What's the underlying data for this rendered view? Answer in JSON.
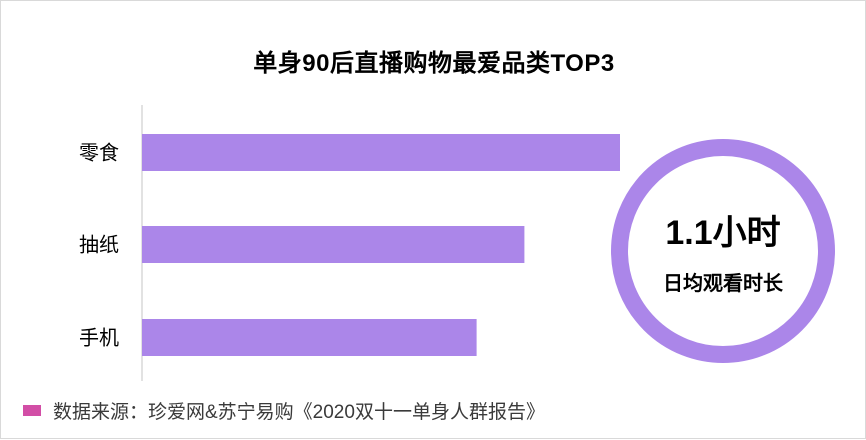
{
  "colors": {
    "bar": "#ab86e9",
    "ring": "#ab86e9",
    "source_swatch": "#d24ea6"
  },
  "chart_data": {
    "type": "bar",
    "orientation": "horizontal",
    "title": "单身90后直播购物最爱品类TOP3",
    "categories": [
      "零食",
      "抽纸",
      "手机"
    ],
    "values": [
      100,
      80,
      70
    ],
    "xlim": [
      0,
      100
    ],
    "grid": false
  },
  "badge": {
    "value": "1.1小时",
    "caption": "日均观看时长"
  },
  "source": {
    "text": "数据来源：珍爱网&苏宁易购《2020双十一单身人群报告》"
  }
}
